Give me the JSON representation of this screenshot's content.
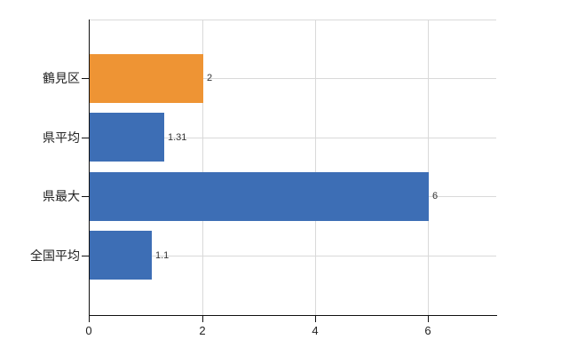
{
  "chart_data": {
    "type": "bar",
    "orientation": "horizontal",
    "title": "",
    "xlabel": "",
    "ylabel": "",
    "categories": [
      "鶴見区",
      "県平均",
      "県最大",
      "全国平均"
    ],
    "values": [
      2,
      1.31,
      6,
      1.1
    ],
    "value_labels": [
      "2",
      "1.31",
      "6",
      "1.1"
    ],
    "bar_colors": [
      "#ee9434",
      "#3d6eb5",
      "#3d6eb5",
      "#3d6eb5"
    ],
    "x_ticks": [
      0,
      2,
      4,
      6
    ],
    "x_tick_labels": [
      "0",
      "2",
      "4",
      "6"
    ],
    "xlim": [
      0,
      7.2
    ],
    "grid": "on",
    "legend": "none",
    "colors": {
      "orange_bar": "#ee9434",
      "blue_bar": "#3d6eb5",
      "gridline": "#d9d9d9",
      "axis": "#111111",
      "value_label": "#333333",
      "tick_label": "#222222"
    }
  }
}
